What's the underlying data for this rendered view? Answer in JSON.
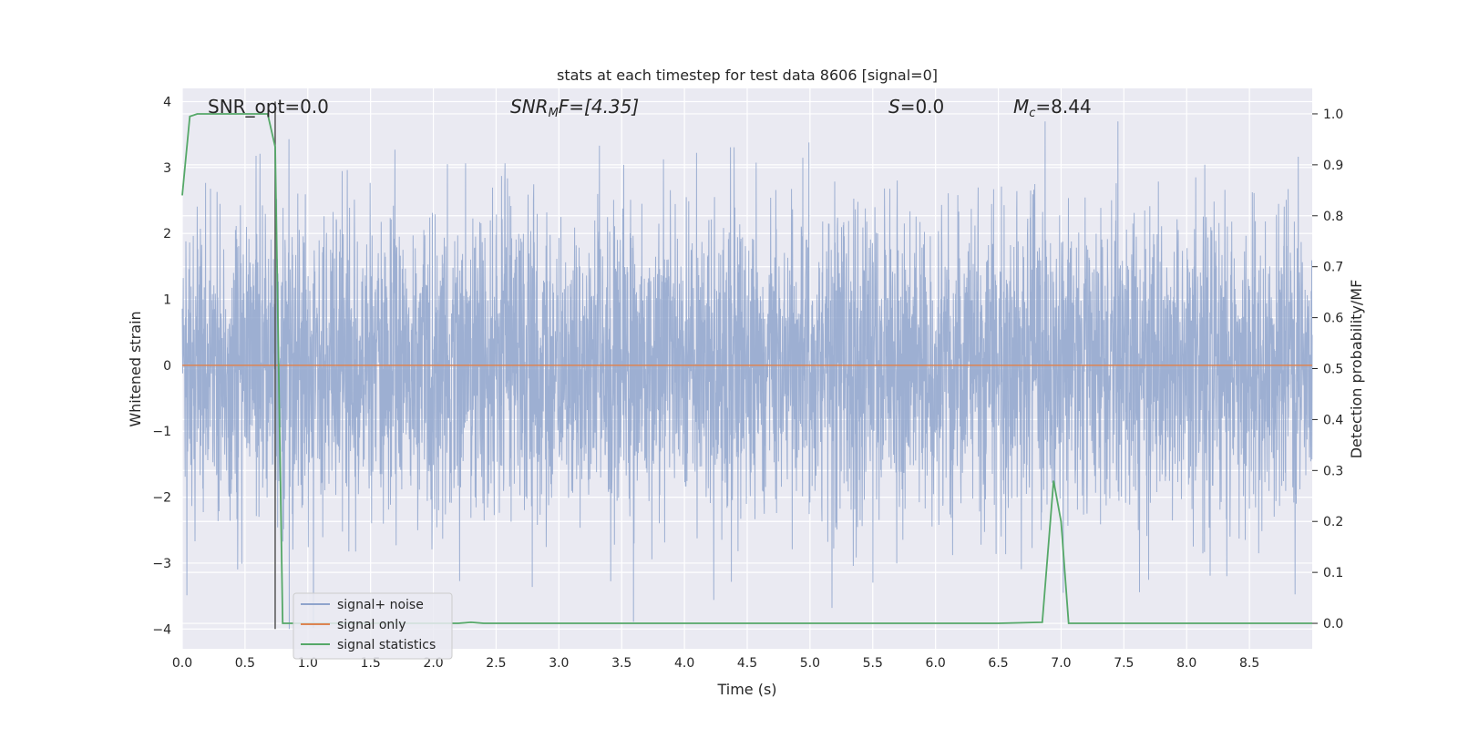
{
  "chart_data": {
    "type": "line",
    "title": "stats at each timestep for test data 8606 [signal=0]",
    "xlabel": "Time (s)",
    "ylabel": "Whitened strain",
    "y2label": "Detection probability/MF",
    "xlim": [
      0,
      9.0
    ],
    "ylim": [
      -4.3,
      4.2
    ],
    "y2lim": [
      -0.05,
      1.05
    ],
    "x_ticks": [
      "0.0",
      "0.5",
      "1.0",
      "1.5",
      "2.0",
      "2.5",
      "3.0",
      "3.5",
      "4.0",
      "4.5",
      "5.0",
      "5.5",
      "6.0",
      "6.5",
      "7.0",
      "7.5",
      "8.0",
      "8.5"
    ],
    "y_ticks": [
      "4",
      "3",
      "2",
      "1",
      "0",
      "−1",
      "−2",
      "−3",
      "−4"
    ],
    "y2_ticks": [
      "1.0",
      "0.9",
      "0.8",
      "0.7",
      "0.6",
      "0.5",
      "0.4",
      "0.3",
      "0.2",
      "0.1",
      "0.0"
    ],
    "grid": true,
    "legend_position": "lower-left",
    "annotations": {
      "snr_opt": "SNR_opt=0.0",
      "snr_mf_base": "SNR",
      "snr_mf_sub": "M",
      "snr_mf_rest": "F=[4.35]",
      "s_base": "S",
      "s_rest": "=0.0",
      "mc_base": "M",
      "mc_sub": "c",
      "mc_rest": "=8.44"
    },
    "marker_line_x": 0.74,
    "series": [
      {
        "name": "signal+ noise",
        "color": "#8fa4cc",
        "axis": "left",
        "noise_amplitude": 1.85,
        "num_samples": 4608
      },
      {
        "name": "signal only",
        "color": "#dd8452",
        "axis": "left",
        "x": [
          0.0,
          9.0
        ],
        "y": [
          0.0,
          0.0
        ]
      },
      {
        "name": "signal statistics",
        "color": "#55a868",
        "axis": "right",
        "x": [
          0.0,
          0.06,
          0.12,
          0.2,
          0.3,
          0.4,
          0.5,
          0.6,
          0.68,
          0.74,
          0.8,
          0.9,
          1.0,
          1.5,
          2.0,
          2.2,
          2.3,
          2.4,
          3.0,
          4.0,
          5.0,
          6.0,
          6.5,
          6.85,
          6.94,
          7.0,
          7.06,
          7.2,
          8.0,
          9.0
        ],
        "y": [
          0.84,
          0.995,
          1.0,
          1.0,
          1.0,
          1.0,
          1.0,
          1.0,
          1.0,
          0.935,
          0.0,
          0.0,
          0.0,
          0.0,
          0.0,
          0.0,
          0.002,
          0.0,
          0.0,
          0.0,
          0.0,
          0.0,
          0.0,
          0.002,
          0.28,
          0.2,
          0.0,
          0.0,
          0.0,
          0.0
        ]
      }
    ]
  },
  "colors": {
    "plot_background": "#eaeaf2",
    "grid": "#ffffff",
    "marker_line": "#555555"
  }
}
